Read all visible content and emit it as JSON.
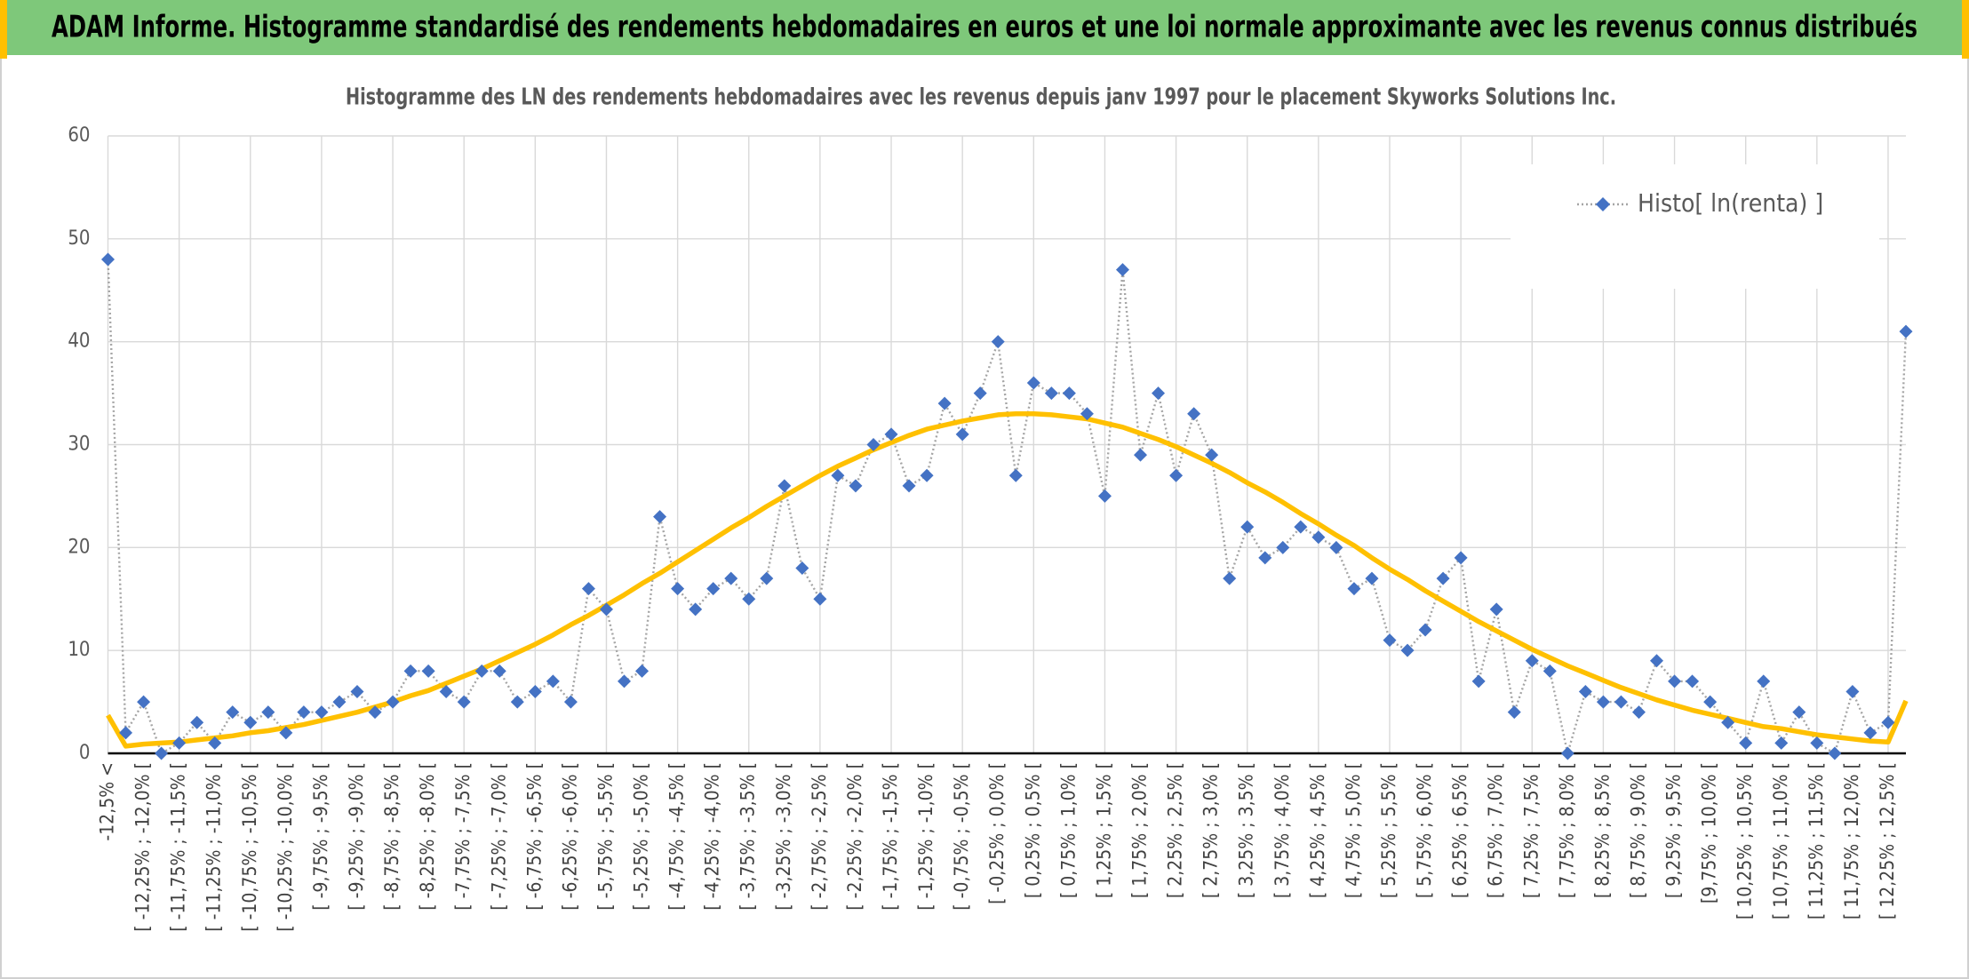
{
  "header": {
    "title": "ADAM Informe. Histogramme standardisé des rendements hebdomadaires en euros et une loi normale approximante avec les revenus connus distribués"
  },
  "chart_data": {
    "type": "line",
    "title": "Histogramme des LN des rendements hebdomadaires avec les revenus depuis janv 1997 pour le placement Skyworks Solutions Inc.",
    "categories": [
      "-12,5% <",
      null,
      "[ -12,25% ; -12,0% [",
      null,
      "[ -11,75% ; -11,5% [",
      null,
      "[ -11,25% ; -11,0% [",
      null,
      "[ -10,75% ; -10,5% [",
      null,
      "[ -10,25% ; -10,0% [",
      null,
      "[ -9,75% ; -9,5% [",
      null,
      "[ -9,25% ; -9,0% [",
      null,
      "[ -8,75% ; -8,5% [",
      null,
      "[ -8,25% ; -8,0% [",
      null,
      "[ -7,75% ; -7,5% [",
      null,
      "[ -7,25% ; -7,0% [",
      null,
      "[ -6,75% ; -6,5% [",
      null,
      "[ -6,25% ; -6,0% [",
      null,
      "[ -5,75% ; -5,5% [",
      null,
      "[ -5,25% ; -5,0% [",
      null,
      "[ -4,75% ; -4,5% [",
      null,
      "[ -4,25% ; -4,0% [",
      null,
      "[ -3,75% ; -3,5% [",
      null,
      "[ -3,25% ; -3,0% [",
      null,
      "[ -2,75% ; -2,5% [",
      null,
      "[ -2,25% ; -2,0% [",
      null,
      "[ -1,75% ; -1,5% [",
      null,
      "[ -1,25% ; -1,0% [",
      null,
      "[ -0,75% ; -0,5% [",
      null,
      "[ -0,25% ; 0,0% [",
      null,
      "[ 0,25% ; 0,5% [",
      null,
      "[ 0,75% ; 1,0% [",
      null,
      "[ 1,25% ; 1,5% [",
      null,
      "[ 1,75% ; 2,0% [",
      null,
      "[ 2,25% ; 2,5% [",
      null,
      "[ 2,75% ; 3,0% [",
      null,
      "[ 3,25% ; 3,5% [",
      null,
      "[ 3,75% ; 4,0% [",
      null,
      "[ 4,25% ; 4,5% [",
      null,
      "[ 4,75% ; 5,0% [",
      null,
      "[ 5,25% ; 5,5% [",
      null,
      "[ 5,75% ; 6,0% [",
      null,
      "[ 6,25% ; 6,5% [",
      null,
      "[ 6,75% ; 7,0% [",
      null,
      "[ 7,25% ; 7,5% [",
      null,
      "[ 7,75% ; 8,0% [",
      null,
      "[ 8,25% ; 8,5% [",
      null,
      "[ 8,75% ; 9,0% [",
      null,
      "[ 9,25% ; 9,5% [",
      null,
      "[9,75% ; 10,0% [",
      null,
      "[ 10,25% ; 10,5% [",
      null,
      "[ 10,75% ; 11,0% [",
      null,
      "[ 11,25% ; 11,5% [",
      null,
      "[ 11,75% ; 12,0% [",
      null,
      "[ 12,25% ; 12,5% [",
      null
    ],
    "series": [
      {
        "name": "Histo[ ln(renta) ]",
        "color": "#4472c4",
        "line_color": "#a5a5a5",
        "line_style": "dotted",
        "marker": "diamond",
        "values": [
          48,
          2,
          5,
          0,
          1,
          3,
          1,
          4,
          3,
          4,
          2,
          4,
          4,
          5,
          6,
          4,
          5,
          8,
          8,
          6,
          5,
          8,
          8,
          5,
          6,
          7,
          5,
          16,
          14,
          7,
          8,
          23,
          16,
          14,
          16,
          17,
          15,
          17,
          26,
          18,
          15,
          27,
          26,
          30,
          31,
          26,
          27,
          34,
          31,
          35,
          40,
          27,
          36,
          35,
          35,
          33,
          25,
          47,
          29,
          35,
          27,
          33,
          29,
          17,
          22,
          19,
          20,
          22,
          21,
          20,
          16,
          17,
          11,
          10,
          12,
          17,
          19,
          7,
          14,
          4,
          9,
          8,
          0,
          6,
          5,
          5,
          4,
          9,
          7,
          7,
          5,
          3,
          1,
          7,
          1,
          4,
          1,
          0,
          6,
          2,
          3,
          41
        ]
      },
      {
        "color": "#ffc000",
        "values": [
          3.7,
          0.7,
          0.9,
          1.0,
          1.1,
          1.3,
          1.5,
          1.7,
          2.0,
          2.2,
          2.5,
          2.8,
          3.2,
          3.6,
          4.0,
          4.5,
          5.0,
          5.6,
          6.1,
          6.8,
          7.5,
          8.2,
          9.0,
          9.8,
          10.6,
          11.5,
          12.5,
          13.4,
          14.4,
          15.4,
          16.5,
          17.5,
          18.6,
          19.7,
          20.8,
          21.9,
          22.9,
          24.0,
          25.0,
          26.0,
          27.0,
          27.9,
          28.7,
          29.5,
          30.2,
          30.9,
          31.5,
          31.9,
          32.3,
          32.6,
          32.9,
          33.0,
          33.0,
          32.9,
          32.7,
          32.5,
          32.1,
          31.7,
          31.1,
          30.5,
          29.8,
          29.0,
          28.2,
          27.3,
          26.3,
          25.4,
          24.4,
          23.3,
          22.3,
          21.2,
          20.2,
          19.0,
          17.9,
          16.9,
          15.8,
          14.8,
          13.8,
          12.8,
          11.9,
          11.0,
          10.1,
          9.3,
          8.5,
          7.8,
          7.1,
          6.4,
          5.8,
          5.2,
          4.7,
          4.2,
          3.8,
          3.4,
          3.0,
          2.6,
          2.4,
          2.1,
          1.8,
          1.6,
          1.4,
          1.2,
          1.1,
          5.1
        ]
      }
    ],
    "ylim": [
      0,
      60
    ],
    "yticks": [
      0,
      10,
      20,
      30,
      40,
      50,
      60
    ],
    "grid": true,
    "legend": "upper right"
  }
}
